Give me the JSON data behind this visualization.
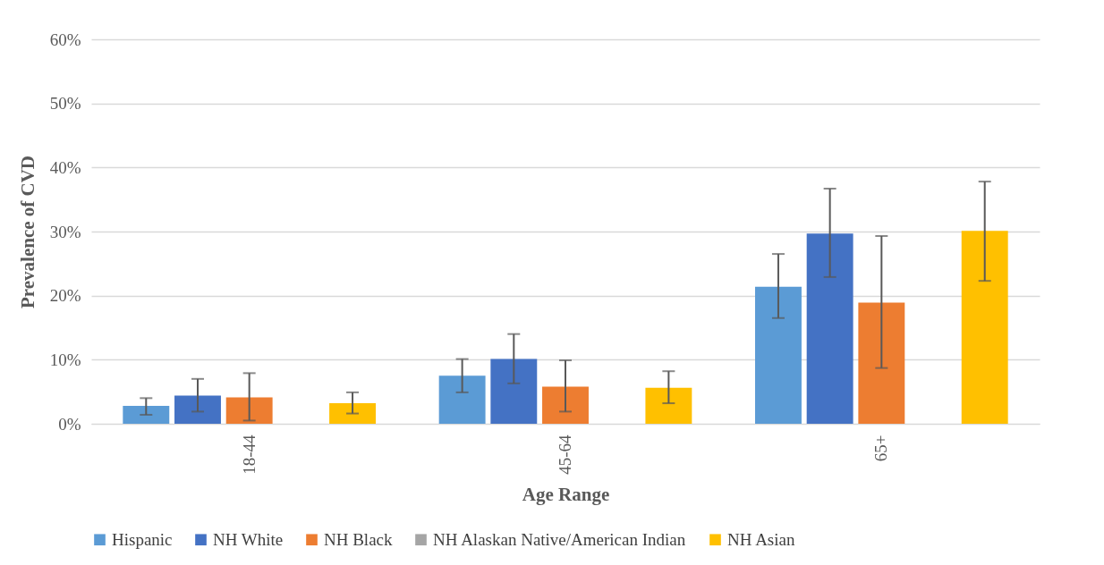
{
  "chart_data": {
    "type": "bar",
    "xlabel": "Age Range",
    "ylabel": "Prevalence of CVD",
    "categories": [
      "18-44",
      "45-64",
      "65+"
    ],
    "series": [
      {
        "name": "Hispanic",
        "color": "#5b9bd5",
        "values": [
          2.8,
          7.5,
          21.4
        ],
        "errors": [
          [
            1.4,
            4.0
          ],
          [
            4.9,
            10.1
          ],
          [
            16.5,
            26.5
          ]
        ]
      },
      {
        "name": "NH White",
        "color": "#4472c4",
        "values": [
          4.4,
          10.1,
          29.7
        ],
        "errors": [
          [
            1.9,
            7.0
          ],
          [
            6.3,
            14.0
          ],
          [
            22.9,
            36.7
          ]
        ]
      },
      {
        "name": "NH Black",
        "color": "#ed7d31",
        "values": [
          4.1,
          5.8,
          18.9
        ],
        "errors": [
          [
            0.5,
            7.9
          ],
          [
            1.9,
            9.9
          ],
          [
            8.7,
            29.3
          ]
        ]
      },
      {
        "name": "NH Alaskan Native/American Indian",
        "color": "#a5a5a5",
        "values": [
          null,
          null,
          null
        ]
      },
      {
        "name": "NH Asian",
        "color": "#ffc000",
        "values": [
          3.2,
          5.6,
          30.1
        ],
        "errors": [
          [
            1.6,
            4.9
          ],
          [
            3.2,
            8.2
          ],
          [
            22.3,
            37.8
          ]
        ]
      }
    ],
    "ylim": [
      0,
      60
    ],
    "yticks": [
      {
        "value": 0,
        "label": "0%"
      },
      {
        "value": 10,
        "label": "10%"
      },
      {
        "value": 20,
        "label": "20%"
      },
      {
        "value": 30,
        "label": "30%"
      },
      {
        "value": 40,
        "label": "40%"
      },
      {
        "value": 50,
        "label": "50%"
      },
      {
        "value": 60,
        "label": "60%"
      }
    ],
    "grid": "y",
    "legend": "bottom"
  }
}
